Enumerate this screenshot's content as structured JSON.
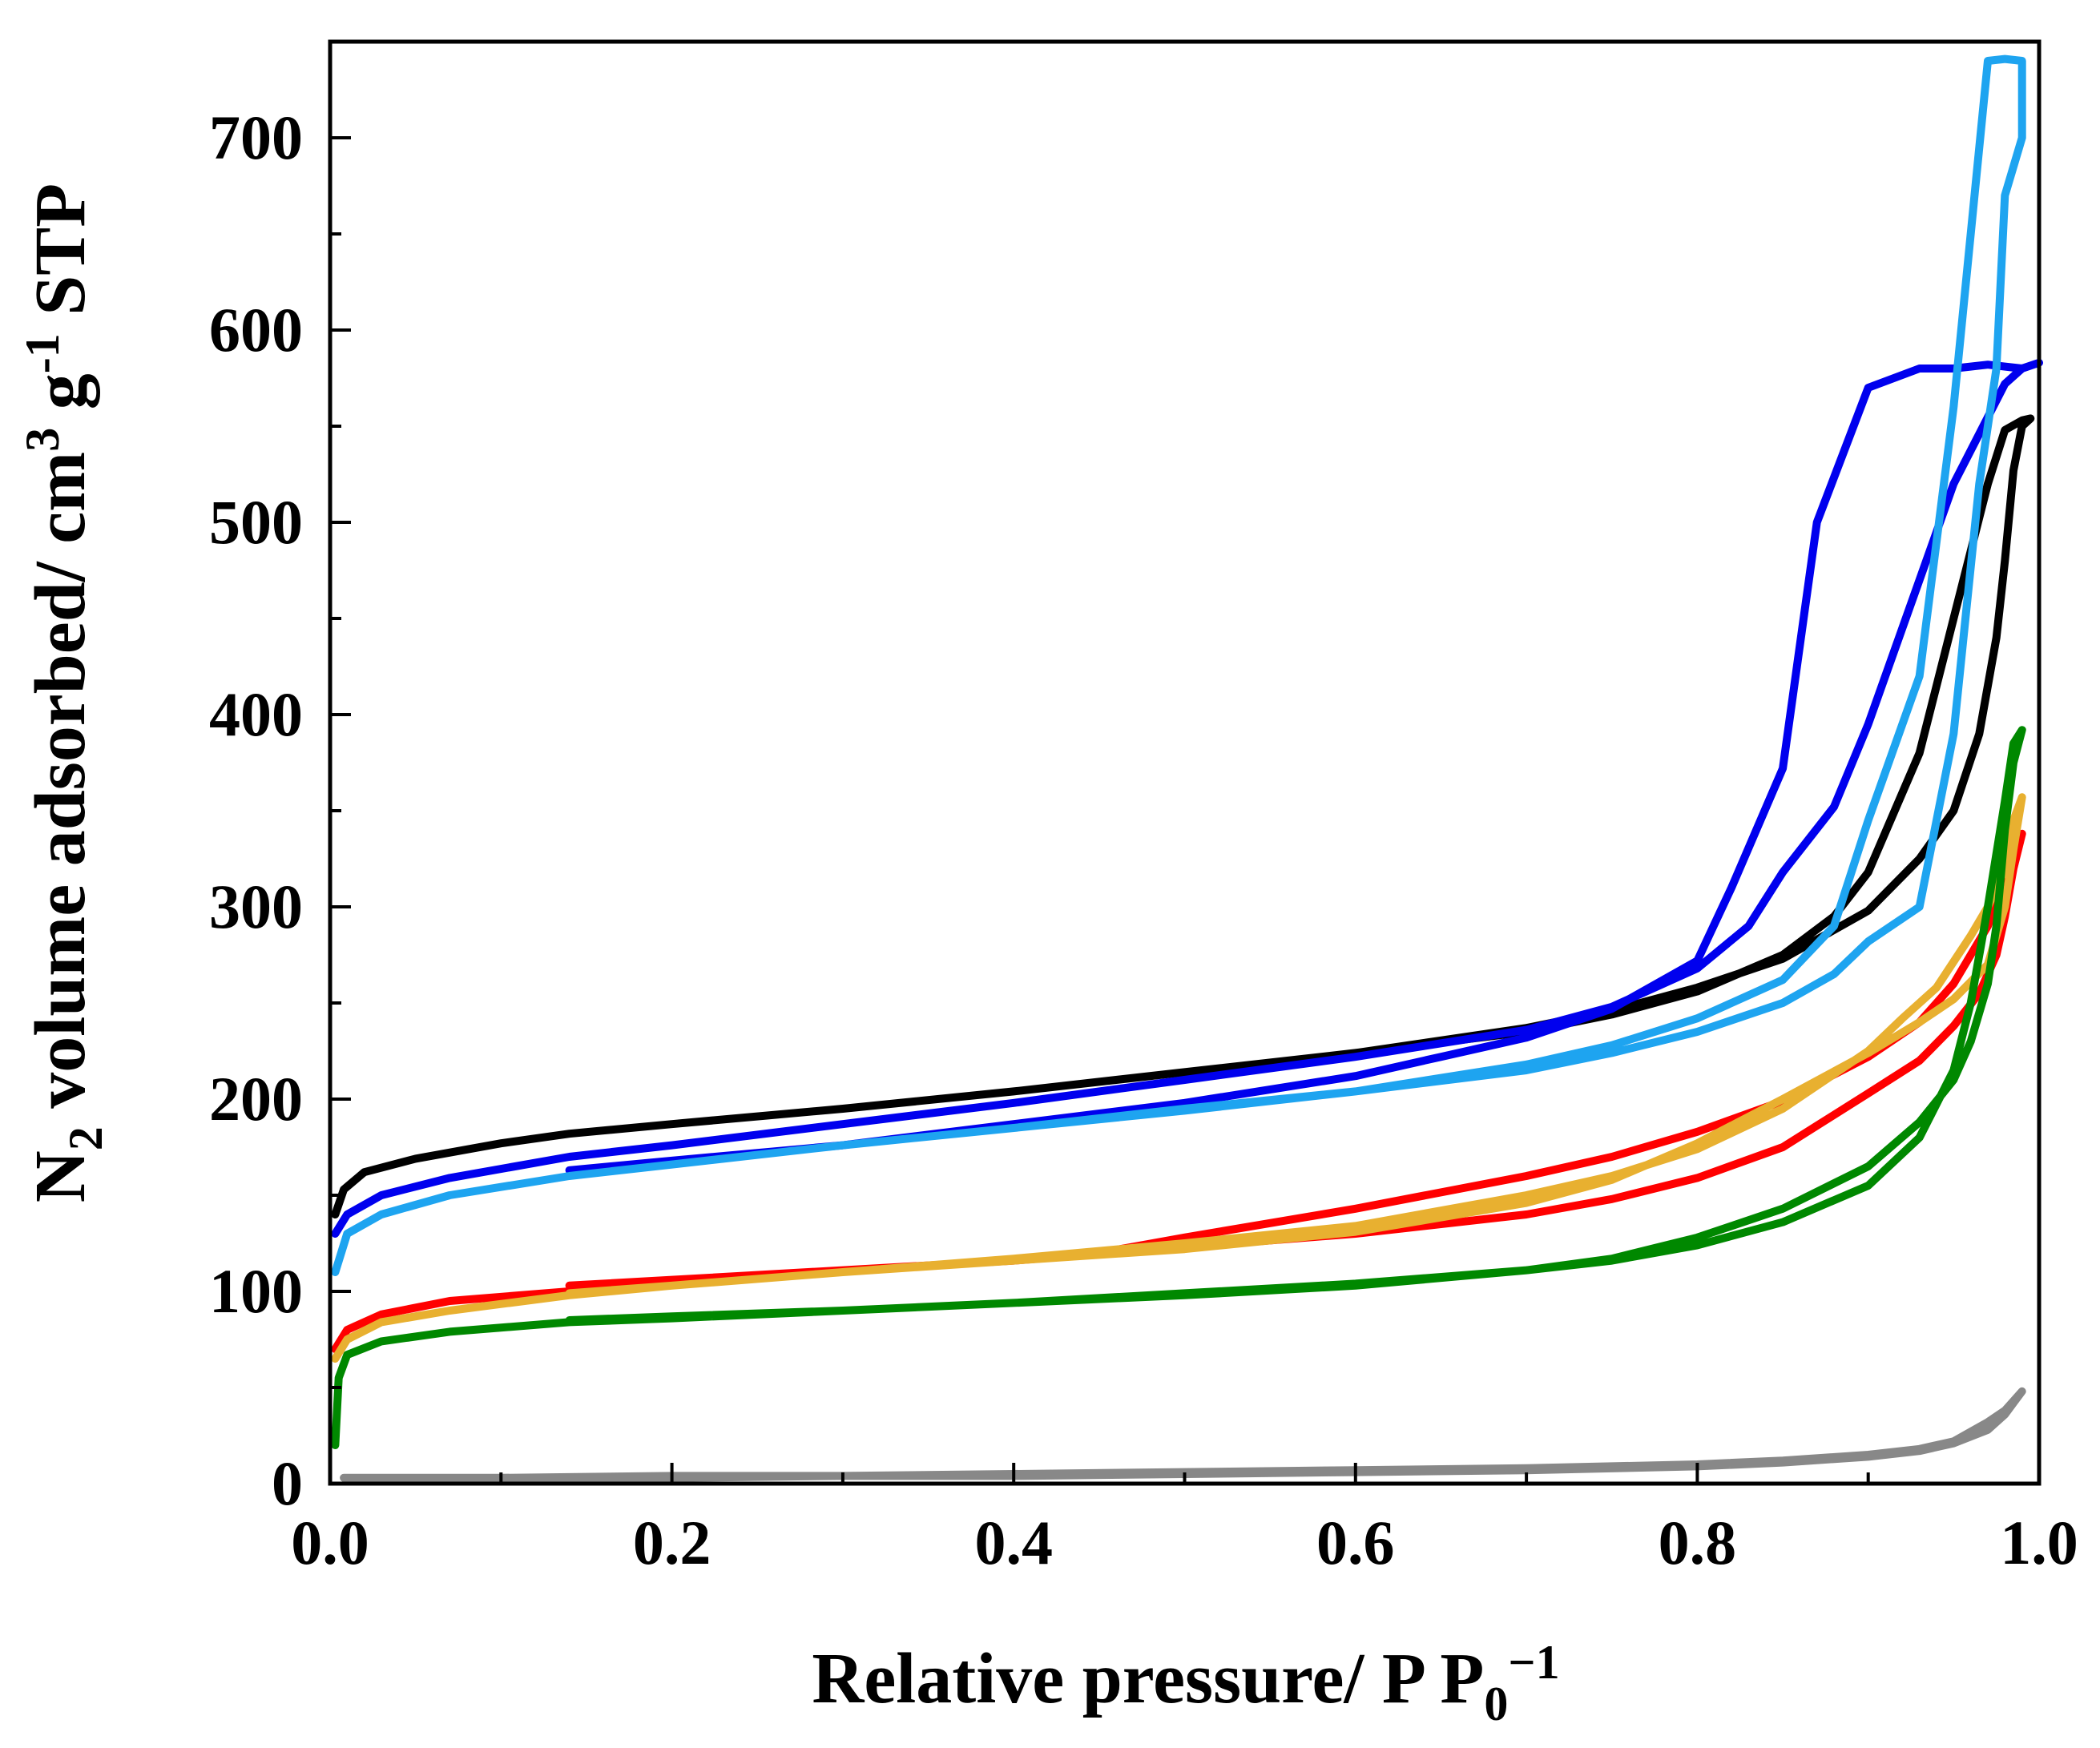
{
  "chart_data": {
    "type": "line",
    "title": "",
    "xlabel": {
      "main": "Relative pressure/ P P",
      "sub": "0",
      "sup": "−1"
    },
    "ylabel": {
      "part1": "N",
      "sub": "2",
      "part2": " volume adsorbed/ cm",
      "sup1": "3",
      "part3": " g",
      "sup2": "-1",
      "part4": " STP"
    },
    "xlim": [
      0.0,
      1.0
    ],
    "ylim": [
      0,
      750
    ],
    "xticks": [
      0.0,
      0.2,
      0.4,
      0.6,
      0.8,
      1.0
    ],
    "xtick_labels": [
      "0.0",
      "0.2",
      "0.4",
      "0.6",
      "0.8",
      "1.0"
    ],
    "yticks": [
      0,
      100,
      200,
      300,
      400,
      500,
      600,
      700
    ],
    "ytick_labels": [
      "0",
      "100",
      "200",
      "300",
      "400",
      "500",
      "600",
      "700"
    ],
    "grid": false,
    "legend": "none",
    "series": [
      {
        "name": "black",
        "color": "#000000",
        "x": [
          0.003,
          0.008,
          0.02,
          0.05,
          0.1,
          0.14,
          0.2,
          0.3,
          0.4,
          0.5,
          0.6,
          0.7,
          0.75,
          0.8,
          0.85,
          0.88,
          0.9,
          0.93,
          0.95,
          0.97,
          0.98,
          0.99,
          0.995,
          0.99,
          0.985,
          0.98,
          0.975,
          0.965,
          0.95,
          0.93,
          0.9,
          0.85,
          0.8,
          0.75,
          0.7,
          0.6,
          0.5,
          0.4,
          0.3,
          0.2,
          0.14
        ],
        "y": [
          140,
          153,
          162,
          169,
          177,
          182,
          187,
          195,
          204,
          214,
          224,
          235,
          244,
          256,
          275,
          295,
          318,
          380,
          450,
          520,
          548,
          553,
          554,
          550,
          527,
          480,
          440,
          390,
          350,
          325,
          298,
          273,
          258,
          246,
          237,
          224,
          214,
          204,
          195,
          187,
          182
        ]
      },
      {
        "name": "blue",
        "color": "#0000ee",
        "x": [
          0.003,
          0.01,
          0.03,
          0.07,
          0.14,
          0.2,
          0.3,
          0.4,
          0.5,
          0.6,
          0.7,
          0.75,
          0.8,
          0.83,
          0.85,
          0.88,
          0.9,
          0.95,
          0.98,
          0.99,
          1.0,
          0.99,
          0.97,
          0.95,
          0.93,
          0.9,
          0.87,
          0.85,
          0.82,
          0.8,
          0.75,
          0.7,
          0.65,
          0.6,
          0.5,
          0.4,
          0.3,
          0.2,
          0.14
        ],
        "y": [
          130,
          140,
          150,
          159,
          170,
          176,
          187,
          198,
          210,
          222,
          236,
          248,
          268,
          290,
          318,
          352,
          395,
          520,
          572,
          580,
          583,
          580,
          582,
          580,
          580,
          570,
          500,
          372,
          310,
          272,
          247,
          232,
          222,
          212,
          198,
          187,
          176,
          168,
          163
        ]
      },
      {
        "name": "light-blue",
        "color": "#1ea4f0",
        "x": [
          0.003,
          0.01,
          0.03,
          0.07,
          0.14,
          0.2,
          0.3,
          0.4,
          0.5,
          0.6,
          0.7,
          0.75,
          0.8,
          0.85,
          0.88,
          0.9,
          0.93,
          0.95,
          0.97,
          0.98,
          0.99,
          0.99,
          0.98,
          0.975,
          0.965,
          0.95,
          0.93,
          0.9,
          0.88,
          0.85,
          0.8,
          0.75,
          0.7,
          0.6,
          0.5,
          0.4,
          0.3,
          0.2,
          0.14
        ],
        "y": [
          110,
          130,
          140,
          150,
          160,
          166,
          176,
          185,
          195,
          204,
          218,
          228,
          242,
          262,
          290,
          345,
          420,
          560,
          740,
          741,
          740,
          700,
          670,
          580,
          520,
          390,
          300,
          282,
          265,
          250,
          235,
          224,
          215,
          204,
          194,
          185,
          176,
          166,
          160
        ]
      },
      {
        "name": "red",
        "color": "#ff0000",
        "x": [
          0.003,
          0.01,
          0.03,
          0.07,
          0.14,
          0.2,
          0.3,
          0.4,
          0.45,
          0.5,
          0.6,
          0.7,
          0.75,
          0.8,
          0.85,
          0.9,
          0.93,
          0.95,
          0.97,
          0.98,
          0.985,
          0.99,
          0.985,
          0.98,
          0.975,
          0.965,
          0.95,
          0.93,
          0.9,
          0.85,
          0.8,
          0.75,
          0.7,
          0.6,
          0.5,
          0.4,
          0.3,
          0.2,
          0.14
        ],
        "y": [
          70,
          80,
          88,
          95,
          100,
          105,
          111,
          116,
          120,
          128,
          143,
          160,
          170,
          183,
          199,
          222,
          240,
          260,
          290,
          315,
          330,
          338,
          320,
          295,
          275,
          255,
          238,
          220,
          203,
          175,
          159,
          148,
          140,
          130,
          123,
          116,
          111,
          106,
          103
        ]
      },
      {
        "name": "orange",
        "color": "#e8b030",
        "x": [
          0.003,
          0.01,
          0.03,
          0.07,
          0.14,
          0.2,
          0.3,
          0.4,
          0.5,
          0.6,
          0.7,
          0.75,
          0.8,
          0.85,
          0.9,
          0.93,
          0.95,
          0.97,
          0.98,
          0.985,
          0.99,
          0.985,
          0.98,
          0.97,
          0.96,
          0.94,
          0.92,
          0.9,
          0.85,
          0.8,
          0.75,
          0.7,
          0.6,
          0.5,
          0.4,
          0.3,
          0.2,
          0.14
        ],
        "y": [
          65,
          75,
          84,
          90,
          98,
          103,
          110,
          116,
          122,
          131,
          146,
          158,
          177,
          200,
          224,
          240,
          252,
          270,
          300,
          330,
          357,
          345,
          320,
          300,
          285,
          258,
          242,
          225,
          195,
          174,
          160,
          150,
          134,
          125,
          117,
          110,
          103,
          99
        ]
      },
      {
        "name": "green",
        "color": "#008800",
        "x": [
          0.003,
          0.005,
          0.01,
          0.03,
          0.07,
          0.14,
          0.2,
          0.3,
          0.4,
          0.5,
          0.6,
          0.7,
          0.75,
          0.8,
          0.85,
          0.9,
          0.93,
          0.95,
          0.96,
          0.97,
          0.98,
          0.985,
          0.99,
          0.985,
          0.98,
          0.975,
          0.97,
          0.96,
          0.95,
          0.93,
          0.9,
          0.85,
          0.8,
          0.75,
          0.7,
          0.6,
          0.5,
          0.4,
          0.3,
          0.2,
          0.14
        ],
        "y": [
          20,
          55,
          67,
          74,
          79,
          84,
          86,
          90,
          94,
          99,
          104,
          111,
          116,
          124,
          136,
          155,
          180,
          215,
          250,
          300,
          355,
          385,
          392,
          375,
          340,
          290,
          260,
          230,
          210,
          188,
          165,
          143,
          128,
          117,
          111,
          103,
          98,
          94,
          90,
          87,
          85
        ]
      },
      {
        "name": "gray",
        "color": "#888888",
        "x": [
          0.008,
          0.05,
          0.1,
          0.2,
          0.3,
          0.4,
          0.5,
          0.6,
          0.7,
          0.8,
          0.85,
          0.9,
          0.93,
          0.95,
          0.97,
          0.98,
          0.985,
          0.99,
          0.985,
          0.98,
          0.97,
          0.95,
          0.93,
          0.9,
          0.85,
          0.8,
          0.7,
          0.6,
          0.5,
          0.4,
          0.3,
          0.2,
          0.1
        ],
        "y": [
          3,
          3,
          3,
          4,
          4,
          5,
          6,
          7,
          8,
          10,
          12,
          15,
          18,
          22,
          32,
          38,
          43,
          48,
          42,
          36,
          28,
          21,
          17,
          14,
          11,
          9,
          7,
          6,
          5,
          4,
          4,
          3,
          3
        ]
      }
    ]
  }
}
